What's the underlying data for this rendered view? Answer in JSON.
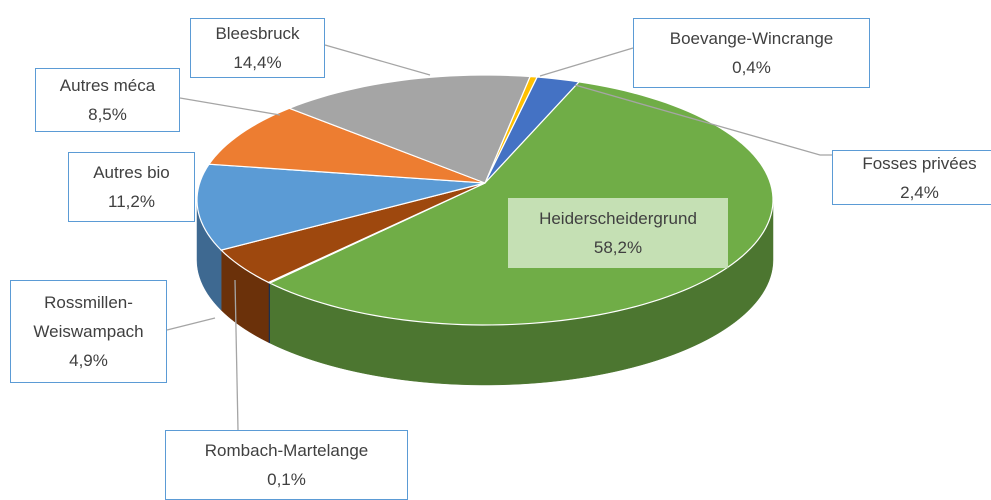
{
  "chart_data": {
    "type": "pie3d",
    "categories": [
      "Boevange-Wincrange",
      "Fosses privées",
      "Heiderscheidergrund",
      "Rombach-Martelange",
      "Rossmillen-Weiswampach",
      "Autres bio",
      "Autres méca",
      "Bleesbruck"
    ],
    "values": [
      0.4,
      2.4,
      58.2,
      0.1,
      4.9,
      11.2,
      8.5,
      14.4
    ],
    "value_labels": [
      "0,4%",
      "2,4%",
      "58,2%",
      "0,1%",
      "4,9%",
      "11,2%",
      "8,5%",
      "14,4%"
    ],
    "colors": [
      "#ffc000",
      "#4472c4",
      "#70ad47",
      "#264478",
      "#9e480e",
      "#5b9bd5",
      "#ed7d31",
      "#a5a5a5"
    ]
  }
}
